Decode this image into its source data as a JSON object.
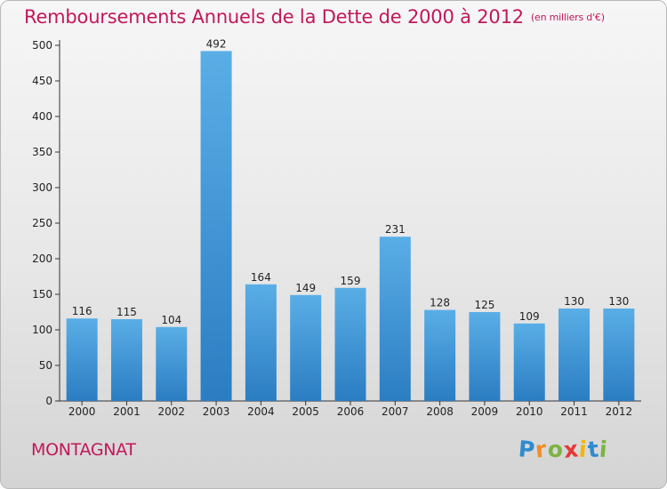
{
  "title": "Remboursements Annuels de la Dette de 2000 à 2012",
  "unit": "(en milliers d'€)",
  "place": "MONTAGNAT",
  "logo": {
    "letters": [
      "P",
      "r",
      "o",
      "x",
      "i",
      "t",
      "i"
    ],
    "colors": [
      "#2e8bd0",
      "#f28c28",
      "#7cb342",
      "#e53935",
      "#f2b705",
      "#2e8bd0",
      "#7cb342"
    ]
  },
  "colors": {
    "bar_top": "#5aaee6",
    "bar_bottom": "#2b7dc2",
    "title": "#c2185b"
  },
  "chart_data": {
    "type": "bar",
    "categories": [
      "2000",
      "2001",
      "2002",
      "2003",
      "2004",
      "2005",
      "2006",
      "2007",
      "2008",
      "2009",
      "2010",
      "2011",
      "2012"
    ],
    "values": [
      116,
      115,
      104,
      492,
      164,
      149,
      159,
      231,
      128,
      125,
      109,
      130,
      130
    ],
    "data_labels": [
      "116",
      "115",
      "104",
      "492",
      "164",
      "149",
      "159",
      "231",
      "128",
      "125",
      "109",
      "130",
      "130"
    ],
    "ylim": [
      0,
      500
    ],
    "yticks": [
      0,
      50,
      100,
      150,
      200,
      250,
      300,
      350,
      400,
      450,
      500
    ],
    "grid": false,
    "legend": "none"
  }
}
